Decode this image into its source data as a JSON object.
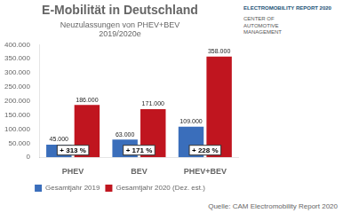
{
  "chart_data": {
    "type": "bar",
    "title": "E-Mobilität in Deutschland",
    "subtitle": "Neuzulassungen von PHEV+BEV\n2019/2020e",
    "categories": [
      "PHEV",
      "BEV",
      "PHEV+BEV"
    ],
    "series": [
      {
        "name": "Gesamtjahr 2019",
        "color": "#3A6EBB",
        "values": [
          45000,
          63000,
          109000
        ],
        "value_labels": [
          "45.000",
          "63.000",
          "109.000"
        ]
      },
      {
        "name": "Gesamtjahr 2020 (Dez. est.)",
        "color": "#C0151F",
        "values": [
          186000,
          171000,
          358000
        ],
        "value_labels": [
          "186.000",
          "171.000",
          "358.000"
        ]
      }
    ],
    "ylim": [
      0,
      400000
    ],
    "yticks": [
      0,
      {
        "value": 50000,
        "label": "50.000"
      },
      {
        "value": 100000,
        "label": "100.000"
      },
      {
        "value": 150000,
        "label": "150.000"
      },
      {
        "value": 200000,
        "label": "200.000"
      },
      {
        "value": 250000,
        "label": "250.000"
      },
      {
        "value": 300000,
        "label": "300.000"
      },
      {
        "value": 350000,
        "label": "350.000"
      },
      {
        "value": 400000,
        "label": "400.000"
      }
    ],
    "grid": false,
    "legend": "bottom",
    "data_labels": true,
    "annotations": [
      {
        "text": "+ 313 %",
        "category": "PHEV"
      },
      {
        "text": "+ 171 %",
        "category": "BEV"
      },
      {
        "text": "+ 228 %",
        "category": "PHEV+BEV"
      },
      {
        "text": "ELECTROMOBILITY REPORT 2020"
      },
      {
        "text": "CENTER OF\nAUTOMOTIVE\nMANAGEMENT"
      }
    ],
    "source": "Quelle: CAM Electromobility Report 2020"
  }
}
